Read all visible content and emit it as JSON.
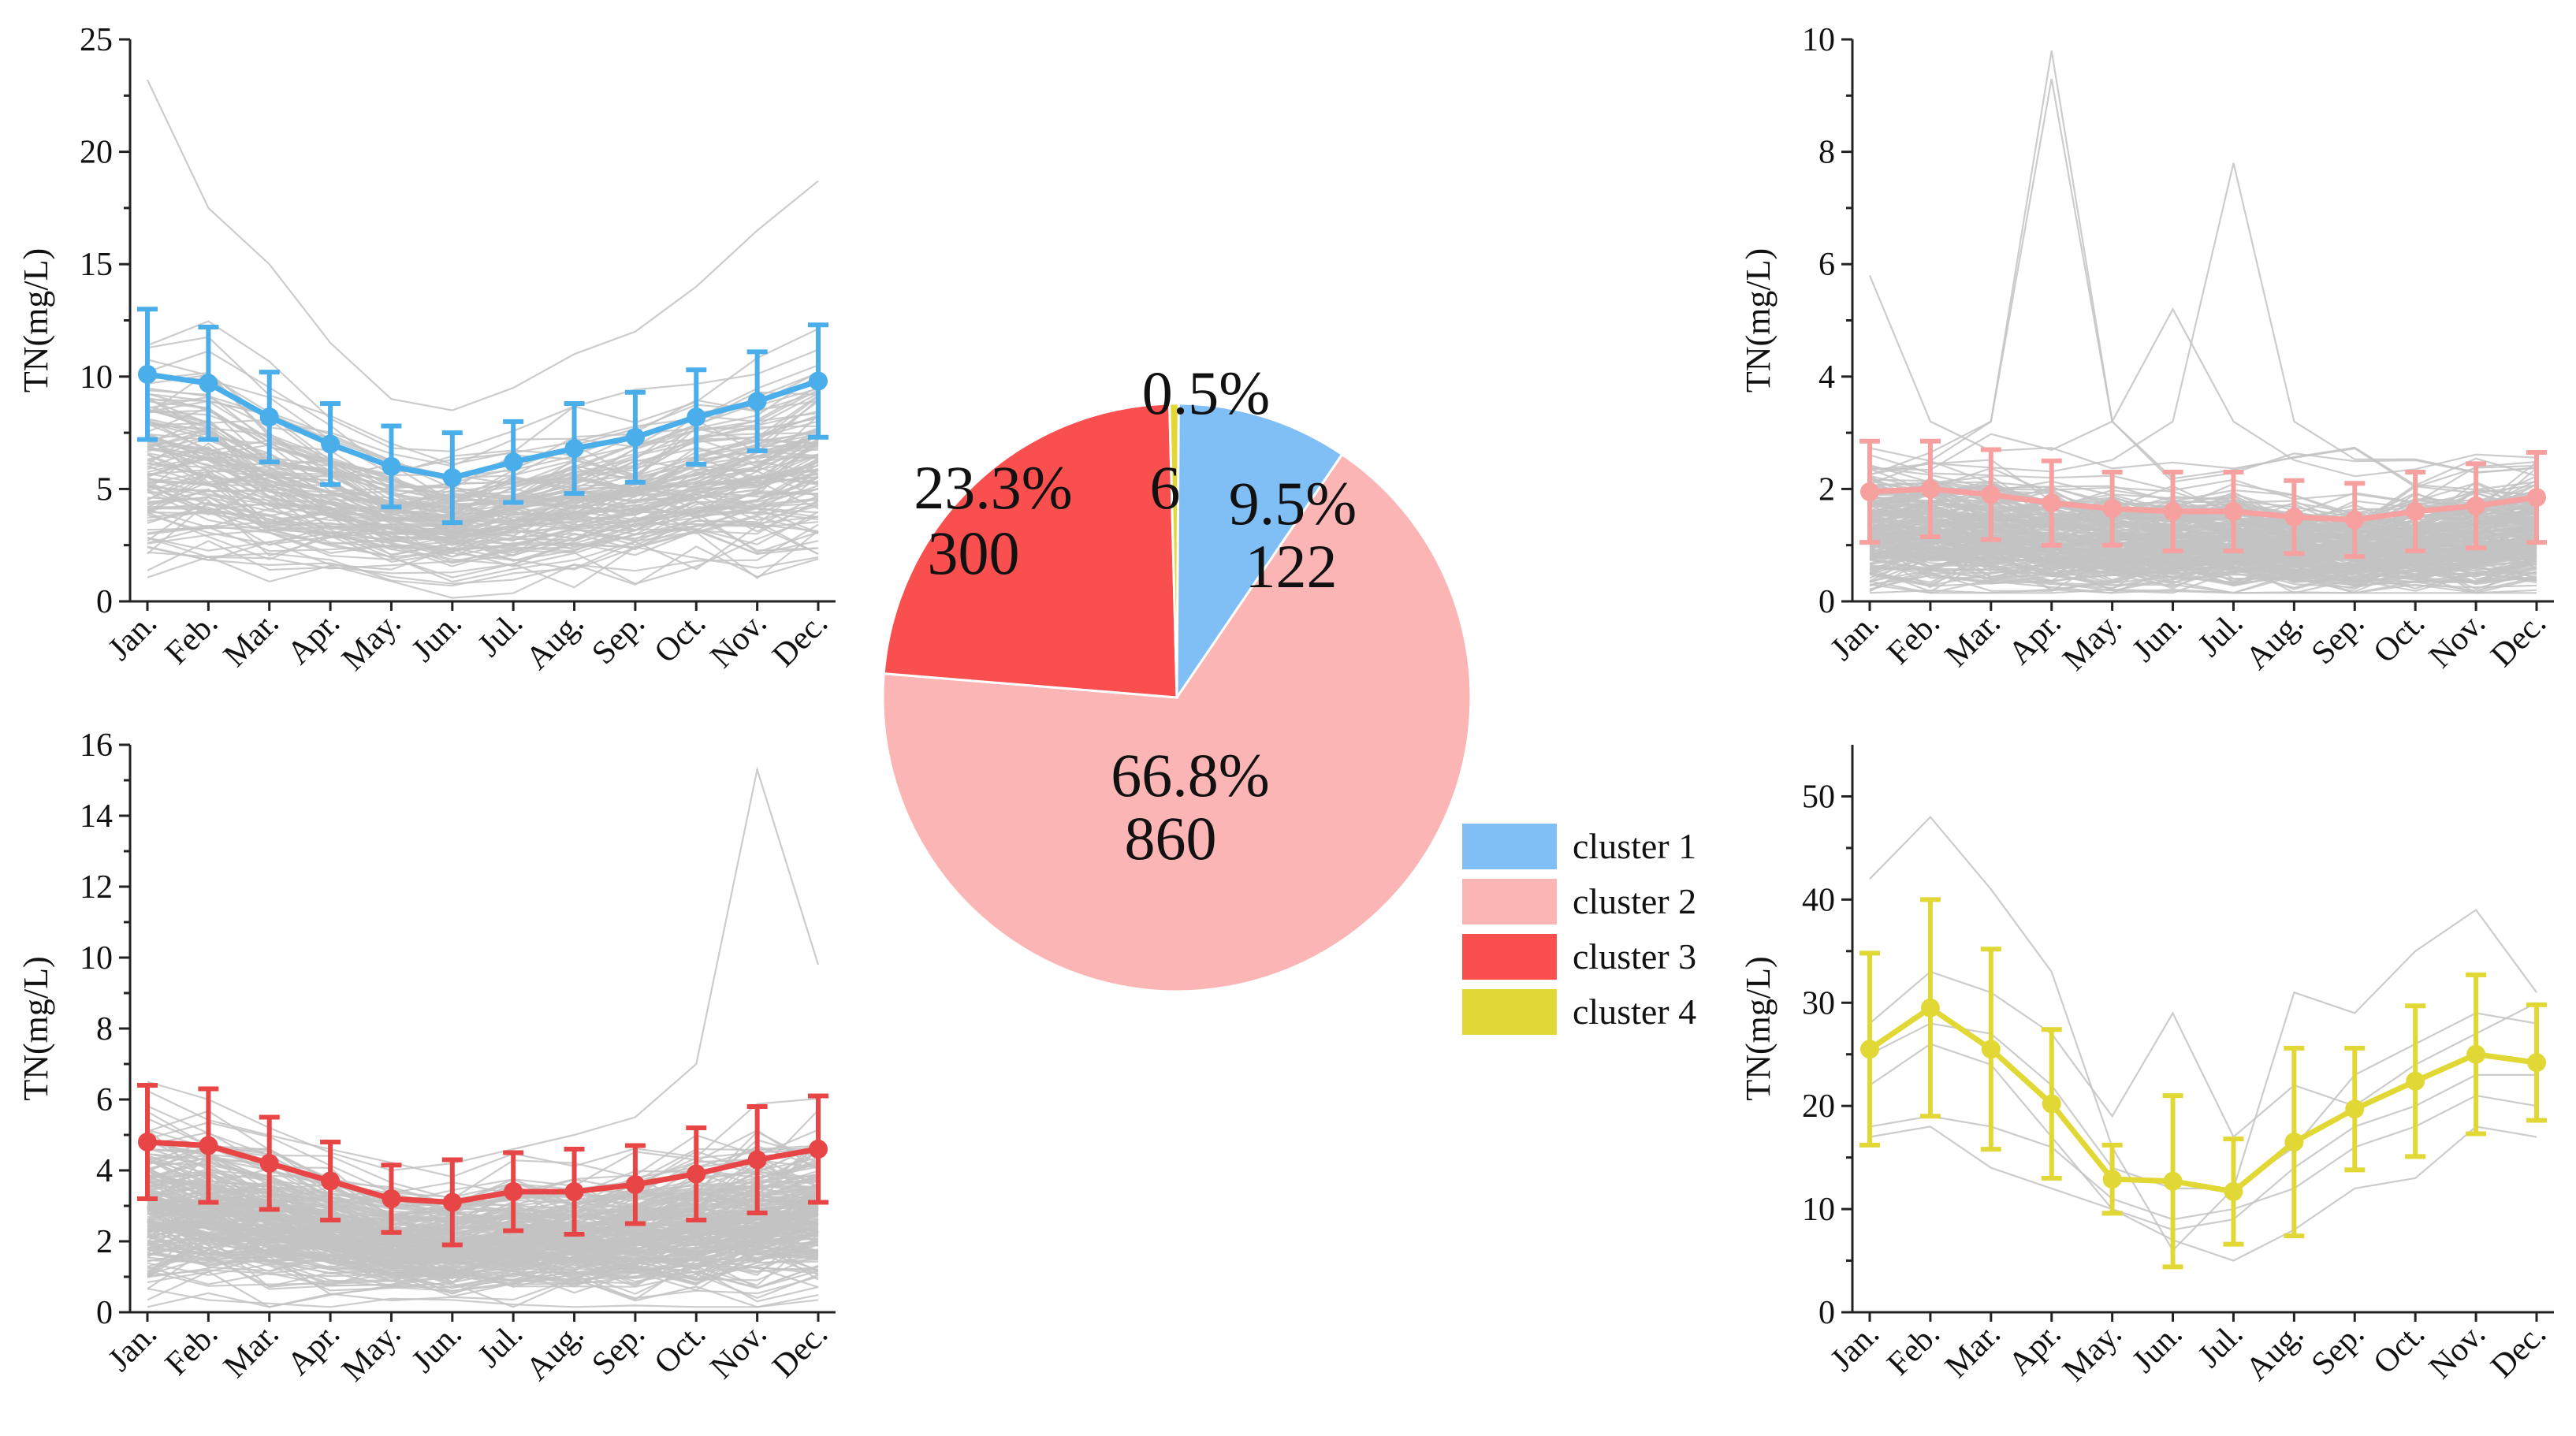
{
  "chart_data": [
    {
      "type": "line",
      "title": "cluster 1",
      "ylabel": "TN(mg/L)",
      "ylim": [
        0,
        25
      ],
      "yticks": [
        0,
        5,
        10,
        15,
        20,
        25
      ],
      "yticklabels": [
        "0",
        "5",
        "10",
        "15",
        "20",
        "25"
      ],
      "color": "#4aaeea",
      "categories": [
        "Jan.",
        "Feb.",
        "Mar.",
        "Apr.",
        "May.",
        "Jun.",
        "Jul.",
        "Aug.",
        "Sep.",
        "Oct.",
        "Nov.",
        "Dec."
      ],
      "mean": [
        10.1,
        9.7,
        8.2,
        7.0,
        6.0,
        5.5,
        6.2,
        6.8,
        7.3,
        8.2,
        8.9,
        9.8
      ],
      "error": [
        2.9,
        2.5,
        2.0,
        1.8,
        1.8,
        2.0,
        1.8,
        2.0,
        2.0,
        2.1,
        2.2,
        2.5
      ],
      "background_series_count": 122
    },
    {
      "type": "line",
      "title": "cluster 2",
      "ylabel": "TN(mg/L)",
      "ylim": [
        0,
        10
      ],
      "yticks": [
        0,
        2,
        4,
        6,
        8,
        10
      ],
      "yticklabels": [
        "0",
        "2",
        "4",
        "6",
        "8",
        "10"
      ],
      "color": "#f7a0a0",
      "categories": [
        "Jan.",
        "Feb.",
        "Mar.",
        "Apr.",
        "May.",
        "Jun.",
        "Jul.",
        "Aug.",
        "Sep.",
        "Oct.",
        "Nov.",
        "Dec."
      ],
      "mean": [
        1.95,
        2.0,
        1.9,
        1.75,
        1.65,
        1.6,
        1.6,
        1.5,
        1.45,
        1.6,
        1.7,
        1.85
      ],
      "error": [
        0.9,
        0.85,
        0.8,
        0.75,
        0.65,
        0.7,
        0.7,
        0.65,
        0.65,
        0.7,
        0.75,
        0.8
      ],
      "background_series_count": 860
    },
    {
      "type": "line",
      "title": "cluster 3",
      "ylabel": "TN(mg/L)",
      "ylim": [
        0,
        16
      ],
      "yticks": [
        0,
        2,
        4,
        6,
        8,
        10,
        12,
        14,
        16
      ],
      "yticklabels": [
        "0",
        "2",
        "4",
        "6",
        "8",
        "10",
        "12",
        "14",
        "16"
      ],
      "color": "#e84646",
      "categories": [
        "Jan.",
        "Feb.",
        "Mar.",
        "Apr.",
        "May.",
        "Jun.",
        "Jul.",
        "Aug.",
        "Sep.",
        "Oct.",
        "Nov.",
        "Dec."
      ],
      "mean": [
        4.8,
        4.7,
        4.2,
        3.7,
        3.2,
        3.1,
        3.4,
        3.4,
        3.6,
        3.9,
        4.3,
        4.6
      ],
      "error": [
        1.6,
        1.6,
        1.3,
        1.1,
        0.95,
        1.2,
        1.1,
        1.2,
        1.1,
        1.3,
        1.5,
        1.5
      ],
      "background_series_count": 300
    },
    {
      "type": "line",
      "title": "cluster 4",
      "ylabel": "TN(mg/L)",
      "ylim": [
        0,
        55
      ],
      "yticks": [
        0,
        10,
        20,
        30,
        40,
        50
      ],
      "yticklabels": [
        "0",
        "10",
        "20",
        "30",
        "40",
        "50"
      ],
      "color": "#e2d835",
      "categories": [
        "Jan.",
        "Feb.",
        "Mar.",
        "Apr.",
        "May.",
        "Jun.",
        "Jul.",
        "Aug.",
        "Sep.",
        "Oct.",
        "Nov.",
        "Dec."
      ],
      "mean": [
        25.5,
        29.5,
        25.5,
        20.2,
        12.9,
        12.7,
        11.7,
        16.5,
        19.7,
        22.4,
        25.0,
        24.2
      ],
      "error": [
        9.3,
        10.5,
        9.7,
        7.2,
        3.3,
        8.3,
        5.1,
        9.1,
        5.9,
        7.3,
        7.7,
        5.6
      ],
      "background_series": [
        [
          42,
          48,
          41,
          33,
          16,
          6,
          12,
          31,
          29,
          35,
          39,
          31
        ],
        [
          28,
          33,
          31,
          27,
          19,
          29,
          17,
          22,
          20,
          24,
          27,
          30
        ],
        [
          25,
          28,
          27,
          22,
          14,
          12,
          12,
          16,
          23,
          26,
          29,
          28
        ],
        [
          22,
          26,
          24,
          17,
          10,
          8,
          9,
          14,
          18,
          20,
          23,
          23
        ],
        [
          18,
          19,
          18,
          16,
          11,
          9,
          10,
          12,
          16,
          18,
          21,
          20
        ],
        [
          17,
          18,
          14,
          12,
          10,
          7,
          5,
          8,
          12,
          13,
          18,
          17
        ]
      ],
      "background_series_count": 6
    },
    {
      "type": "pie",
      "slices": [
        {
          "label": "cluster 1",
          "percent": 9.5,
          "percent_label": "9.5%",
          "count": 122,
          "count_label": "122",
          "color": "#7fbff5"
        },
        {
          "label": "cluster 2",
          "percent": 66.8,
          "percent_label": "66.8%",
          "count": 860,
          "count_label": "860",
          "color": "#fbb5b5"
        },
        {
          "label": "cluster 3",
          "percent": 23.3,
          "percent_label": "23.3%",
          "count": 300,
          "count_label": "300",
          "color": "#fa4f4f"
        },
        {
          "label": "cluster 4",
          "percent": 0.5,
          "percent_label": "0.5%",
          "count": 6,
          "count_label": "6",
          "color": "#e2d835"
        }
      ],
      "legend": {
        "placement": "right",
        "entries": [
          "cluster 1",
          "cluster 2",
          "cluster 3",
          "cluster 4"
        ]
      }
    }
  ]
}
